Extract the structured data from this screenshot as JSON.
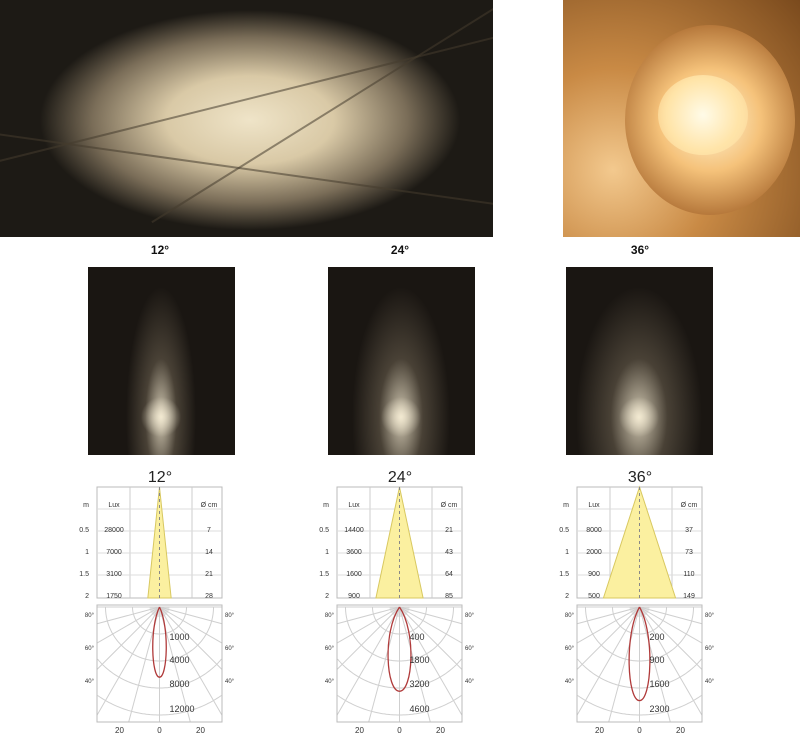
{
  "columns": [
    {
      "label": "12°",
      "angle": 12,
      "table": {
        "headers": {
          "m": "m",
          "lux": "Lux",
          "diameter": "Ø cm"
        },
        "rows": [
          {
            "m": "0.5",
            "lux": "28000",
            "cm": "7"
          },
          {
            "m": "1",
            "lux": "7000",
            "cm": "14"
          },
          {
            "m": "1.5",
            "lux": "3100",
            "cm": "21"
          },
          {
            "m": "2",
            "lux": "1750",
            "cm": "28"
          }
        ]
      },
      "polar": {
        "intensity_labels": [
          "1000",
          "4000",
          "8000",
          "12000"
        ],
        "angle_labels": [
          "80°",
          "60°",
          "40°"
        ],
        "bottom_labels": [
          "20",
          "0",
          "20"
        ],
        "lobe_reach": 0.6,
        "lobe_halfwidth": 0.13
      }
    },
    {
      "label": "24°",
      "angle": 24,
      "table": {
        "headers": {
          "m": "m",
          "lux": "Lux",
          "diameter": "Ø cm"
        },
        "rows": [
          {
            "m": "0.5",
            "lux": "14400",
            "cm": "21"
          },
          {
            "m": "1",
            "lux": "3600",
            "cm": "43"
          },
          {
            "m": "1.5",
            "lux": "1600",
            "cm": "64"
          },
          {
            "m": "2",
            "lux": "900",
            "cm": "85"
          }
        ]
      },
      "polar": {
        "intensity_labels": [
          "400",
          "1800",
          "3200",
          "4600"
        ],
        "angle_labels": [
          "80°",
          "60°",
          "40°"
        ],
        "bottom_labels": [
          "20",
          "0",
          "20"
        ],
        "lobe_reach": 0.72,
        "lobe_halfwidth": 0.22
      }
    },
    {
      "label": "36°",
      "angle": 36,
      "table": {
        "headers": {
          "m": "m",
          "lux": "Lux",
          "diameter": "Ø cm"
        },
        "rows": [
          {
            "m": "0.5",
            "lux": "8000",
            "cm": "37"
          },
          {
            "m": "1",
            "lux": "2000",
            "cm": "73"
          },
          {
            "m": "1.5",
            "lux": "900",
            "cm": "110"
          },
          {
            "m": "2",
            "lux": "500",
            "cm": "149"
          }
        ]
      },
      "polar": {
        "intensity_labels": [
          "200",
          "900",
          "1600",
          "2300"
        ],
        "angle_labels": [
          "80°",
          "60°",
          "40°"
        ],
        "bottom_labels": [
          "20",
          "0",
          "20"
        ],
        "lobe_reach": 0.8,
        "lobe_halfwidth": 0.2
      }
    }
  ],
  "colors": {
    "cone_fill": "#fbf0a0",
    "lobe": "#b03a3a",
    "grid": "#cfcfcf"
  }
}
